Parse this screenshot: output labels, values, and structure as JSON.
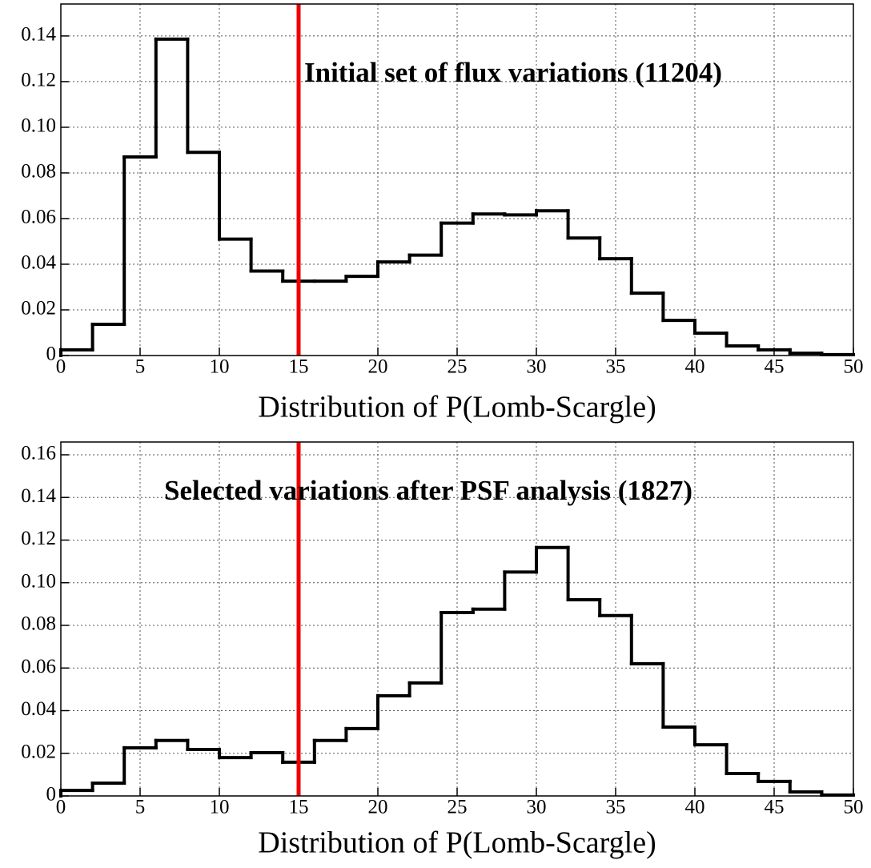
{
  "chart_data": [
    {
      "type": "histogram",
      "annotation": "Initial set of flux variations (11204)",
      "xlabel": "Distribution of P(Lomb-Scargle)",
      "bins": [
        0,
        2,
        4,
        6,
        8,
        10,
        12,
        14,
        16,
        18,
        20,
        22,
        24,
        26,
        28,
        30,
        32,
        34,
        36,
        38,
        40,
        42,
        44,
        46,
        48,
        50
      ],
      "values": [
        0.0025,
        0.0137,
        0.087,
        0.1386,
        0.089,
        0.051,
        0.037,
        0.0326,
        0.0326,
        0.0347,
        0.041,
        0.044,
        0.058,
        0.062,
        0.0616,
        0.0634,
        0.0515,
        0.0424,
        0.0273,
        0.0154,
        0.0098,
        0.0042,
        0.0025,
        0.001,
        0.0004
      ],
      "color": "#000000",
      "xlim": [
        0,
        50
      ],
      "xticks": [
        0,
        5,
        10,
        15,
        20,
        25,
        30,
        35,
        40,
        45,
        50
      ],
      "ylim": [
        0,
        0.154
      ],
      "yticks": [
        0,
        0.02,
        0.04,
        0.06,
        0.08,
        {
          "value": 0.1,
          "label": "0.10"
        },
        0.12,
        0.14
      ],
      "grid": true,
      "vline": {
        "x": 15,
        "color": "#ee0000"
      }
    },
    {
      "type": "histogram",
      "annotation": "Selected variations after PSF analysis (1827)",
      "xlabel": "Distribution of P(Lomb-Scargle)",
      "bins": [
        0,
        2,
        4,
        6,
        8,
        10,
        12,
        14,
        16,
        18,
        20,
        22,
        24,
        26,
        28,
        30,
        32,
        34,
        36,
        38,
        40,
        42,
        44,
        46,
        48,
        50
      ],
      "values": [
        0.0026,
        0.006,
        0.0226,
        0.026,
        0.0218,
        0.018,
        0.0203,
        0.0158,
        0.026,
        0.0316,
        0.047,
        0.053,
        0.086,
        0.0876,
        0.105,
        0.1165,
        0.092,
        0.0846,
        0.062,
        0.0323,
        0.024,
        0.0105,
        0.0068,
        0.0019,
        0.0004
      ],
      "color": "#000000",
      "xlim": [
        0,
        50
      ],
      "xticks": [
        0,
        5,
        10,
        15,
        20,
        25,
        30,
        35,
        40,
        45,
        50
      ],
      "ylim": [
        0,
        0.166
      ],
      "yticks": [
        0,
        0.02,
        0.04,
        0.06,
        0.08,
        {
          "value": 0.1,
          "label": "0.10"
        },
        0.12,
        0.14,
        0.16
      ],
      "grid": true,
      "vline": {
        "x": 15,
        "color": "#ee0000"
      }
    }
  ]
}
